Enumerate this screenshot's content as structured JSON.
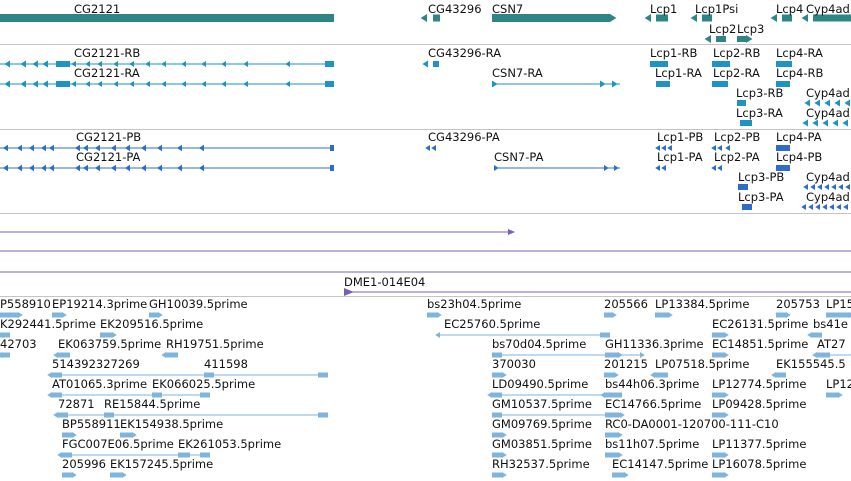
{
  "colors": {
    "gene": "#2e8585",
    "transcript": "#1e93c4",
    "protein": "#2f6cc9",
    "clone": "#7b5fb5",
    "est": "#7fb4dc",
    "separator": "#c4c4c4"
  },
  "gene_track": {
    "labels": [
      "CG2121",
      "CG43296",
      "CSN7",
      "Lcp1",
      "Lcp1Psi",
      "Lcp2",
      "Lcp3",
      "Lcp4",
      "Cyp4ad"
    ]
  },
  "transcript_track": {
    "labels": [
      "CG2121-RB",
      "CG2121-RA",
      "CG43296-RA",
      "CSN7-RA",
      "Lcp1-RB",
      "Lcp2-RB",
      "Lcp4-RA",
      "Lcp1-RA",
      "Lcp2-RA",
      "Lcp4-RB",
      "Lcp3-RB",
      "Cyp4ad",
      "Lcp3-RA",
      "Cyp4ad"
    ]
  },
  "protein_track": {
    "labels": [
      "CG2121-PB",
      "CG2121-PA",
      "CG43296-PA",
      "CSN7-PA",
      "Lcp1-PB",
      "Lcp2-PB",
      "Lcp4-PA",
      "Lcp1-PA",
      "Lcp2-PA",
      "Lcp4-PB",
      "Lcp3-PB",
      "Cyp4ad",
      "Lcp3-PA",
      "Cyp4ad"
    ]
  },
  "clone_track": {
    "labels": [
      "DME1-014E04"
    ]
  },
  "est_track": {
    "labels": [
      "P558910",
      "EP19214.3prime",
      "GH10039.5prime",
      "bs23h04.5prime",
      "205566",
      "LP13384.5prime",
      "205753",
      "LP15",
      "K292441.5prime",
      "EK209516.5prime",
      "EC25760.5prime",
      "EC26131.5prime",
      "bs41e",
      "42703",
      "EK063759.5prime",
      "RH19751.5prime",
      "bs70d04.5prime",
      "GH11336.3prime",
      "EC14851.5prime",
      "AT27",
      "514392327269",
      "411598",
      "370030",
      "201215",
      "LP07518.5prime",
      "EK155545.5",
      "AT01065.3prime",
      "EK066025.5prime",
      "LD09490.5prime",
      "bs44h06.3prime",
      "LP12774.5prime",
      "LP12",
      "72871",
      "RE15844.5prime",
      "GM10537.5prime",
      "EC14766.5prime",
      "LP09428.5prime",
      "BP558911",
      "EK154938.5prime",
      "GM09769.5prime",
      "RC0-DA0001-120700-111-C10",
      "FGC007E06.5prime",
      "EK261053.5prime",
      "GM03851.5prime",
      "bs11h07.5prime",
      "LP11377.5prime",
      "205996",
      "EK157245.5prime",
      "RH32537.5prime",
      "EC14147.5prime",
      "LP16078.5prime"
    ]
  }
}
